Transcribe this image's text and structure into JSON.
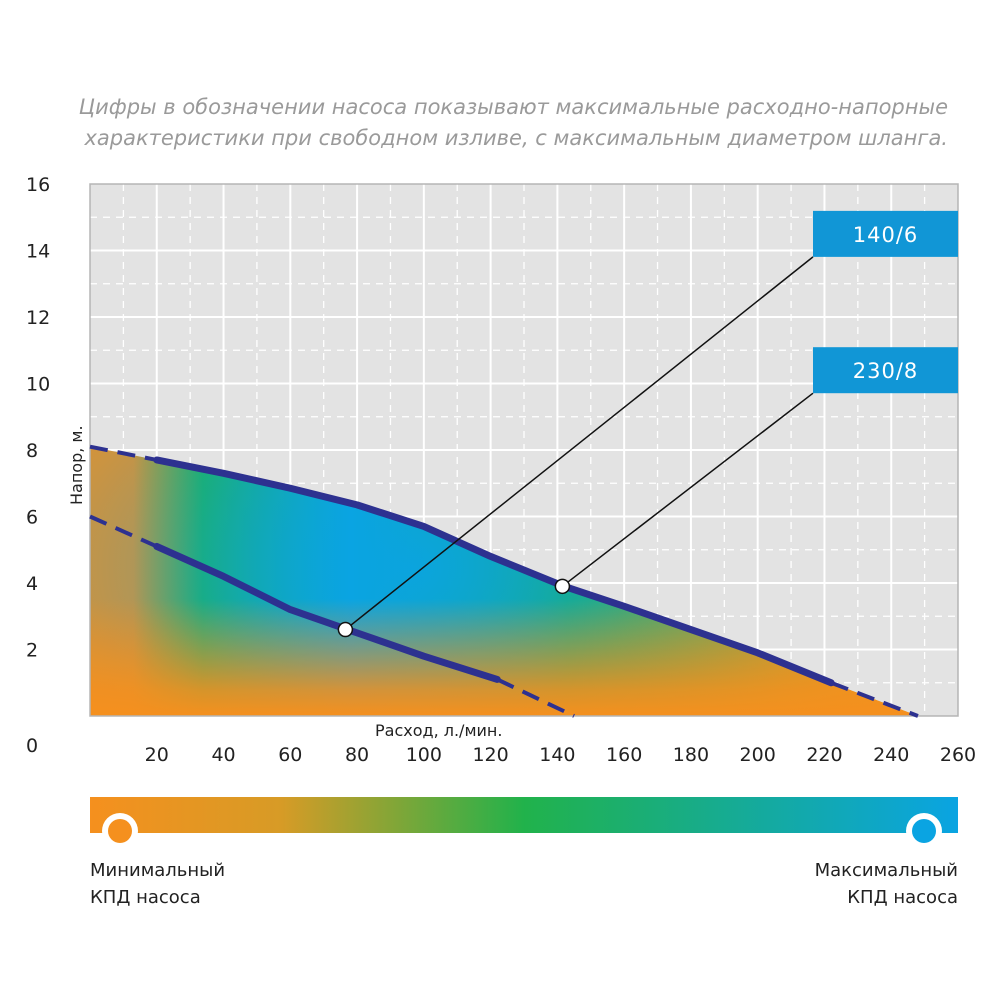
{
  "note": {
    "line1": "Цифры в обозначении насоса показывают максимальные расходно-напорные",
    "line2": "характеристики при свободном изливе, с максимальным диаметром шланга."
  },
  "colors": {
    "low_efficiency": "#f5901e",
    "mid_efficiency": "#21b24b",
    "high_efficiency": "#0aa4e2",
    "curve": "#2d3190",
    "tag_background": "#1196d6",
    "grid": "#c8c8c8"
  },
  "chart_data": {
    "type": "line",
    "title": "",
    "xlabel": "Расход, л./мин.",
    "ylabel": "Напор, м.",
    "xlim": [
      0,
      260
    ],
    "ylim": [
      0,
      16
    ],
    "x_ticks": [
      20,
      40,
      60,
      80,
      100,
      120,
      140,
      160,
      180,
      200,
      220,
      240,
      260
    ],
    "y_ticks": [
      0,
      2,
      4,
      6,
      8,
      10,
      12,
      14,
      16
    ],
    "grid": true,
    "series": [
      {
        "name": "140/6",
        "solid_x": [
          20,
          40,
          60,
          80,
          100,
          122
        ],
        "solid_y": [
          5.1,
          4.2,
          3.2,
          2.5,
          1.8,
          1.1
        ],
        "dashed_start": [
          [
            0,
            6.0
          ],
          [
            20,
            5.1
          ]
        ],
        "dashed_end": [
          [
            122,
            1.1
          ],
          [
            145,
            0.0
          ]
        ],
        "marker": [
          76.5,
          2.6
        ],
        "tag": "140/6"
      },
      {
        "name": "230/8",
        "solid_x": [
          20,
          40,
          60,
          80,
          100,
          120,
          142,
          160,
          180,
          200,
          222
        ],
        "solid_y": [
          7.7,
          7.3,
          6.85,
          6.35,
          5.7,
          4.8,
          3.9,
          3.3,
          2.6,
          1.9,
          1.0
        ],
        "dashed_start": [
          [
            0,
            8.1
          ],
          [
            20,
            7.7
          ]
        ],
        "dashed_end": [
          [
            222,
            1.0
          ],
          [
            248,
            0.0
          ]
        ],
        "marker": [
          141.5,
          3.9
        ],
        "tag": "230/8"
      }
    ]
  },
  "scale": {
    "min_line1": "Минимальный",
    "min_line2": "КПД насоса",
    "max_line1": "Максимальный",
    "max_line2": "КПД насоса"
  }
}
